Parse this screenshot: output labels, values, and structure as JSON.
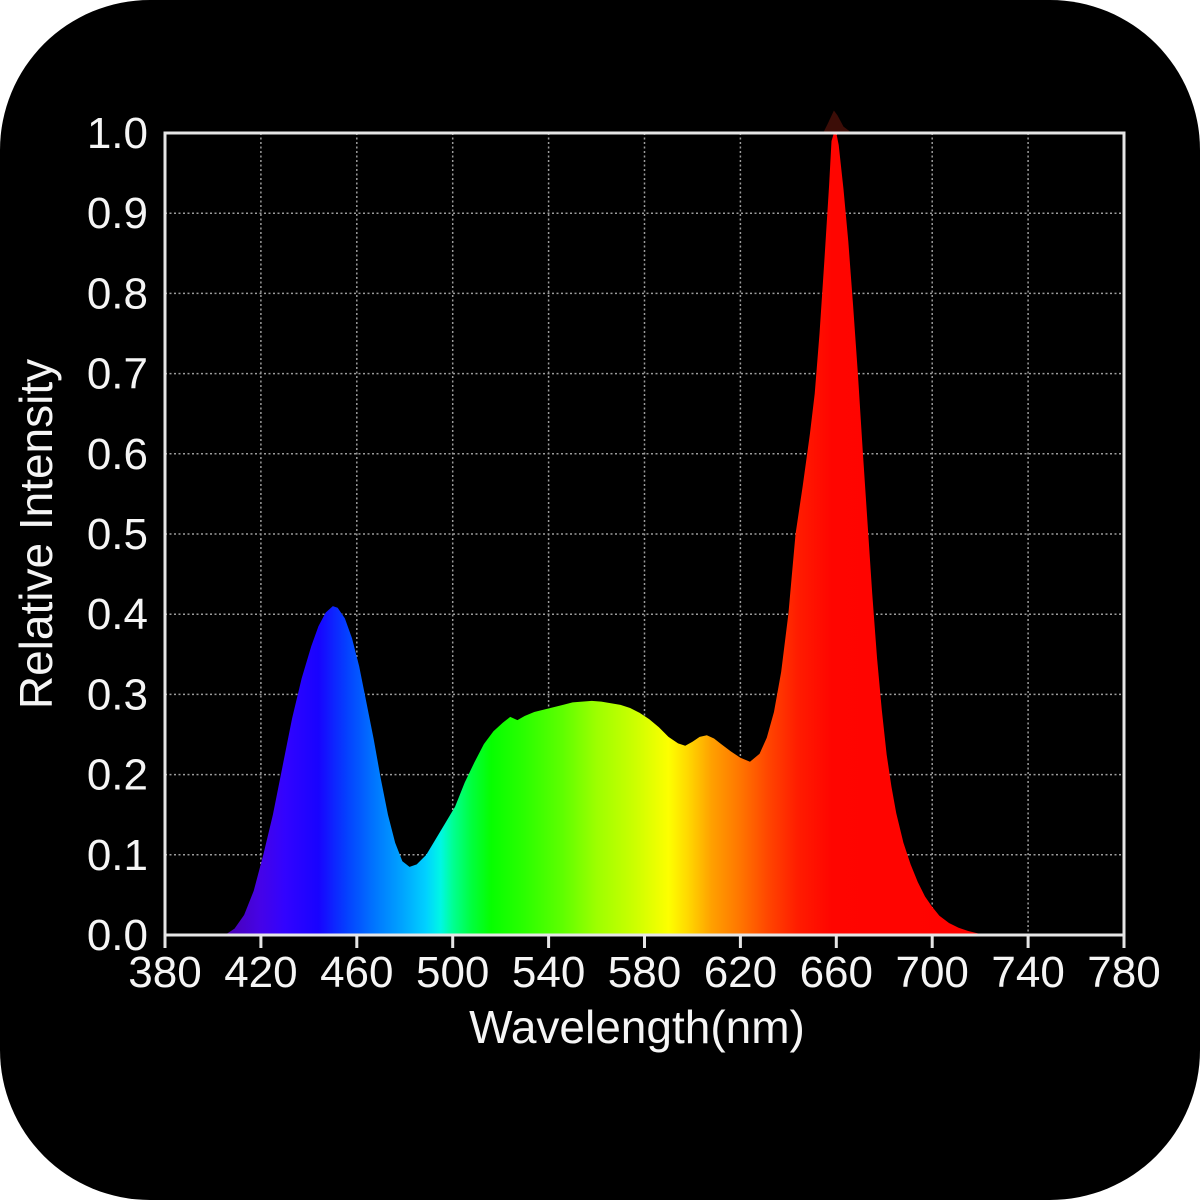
{
  "colors": {
    "page_background": "#ffffff",
    "panel_background": "#000000",
    "plot_background": "#000000",
    "frame": "#e6e6e6",
    "grid": "#9c9c9c",
    "text": "#f5f5f5",
    "overflow_peak_red": "#3c0d07"
  },
  "chart_data": {
    "type": "area",
    "title": "",
    "xlabel": "Wavelength(nm)",
    "ylabel": "Relative Intensity",
    "xlim": [
      380,
      780
    ],
    "ylim": [
      0.0,
      1.0
    ],
    "grid": "dotted gridlines every 40 nm vertical and every 0.1 horizontal",
    "legend": "none",
    "x_ticks": [
      {
        "value": 380,
        "label": "380"
      },
      {
        "value": 420,
        "label": "420"
      },
      {
        "value": 460,
        "label": "460"
      },
      {
        "value": 500,
        "label": "500"
      },
      {
        "value": 540,
        "label": "540"
      },
      {
        "value": 580,
        "label": "580"
      },
      {
        "value": 620,
        "label": "620"
      },
      {
        "value": 660,
        "label": "660"
      },
      {
        "value": 700,
        "label": "700"
      },
      {
        "value": 740,
        "label": "740"
      },
      {
        "value": 780,
        "label": "780"
      }
    ],
    "y_ticks": [
      {
        "value": 0.0,
        "label": "0.0"
      },
      {
        "value": 0.1,
        "label": "0.1"
      },
      {
        "value": 0.2,
        "label": "0.2"
      },
      {
        "value": 0.3,
        "label": "0.3"
      },
      {
        "value": 0.4,
        "label": "0.4"
      },
      {
        "value": 0.5,
        "label": "0.5"
      },
      {
        "value": 0.6,
        "label": "0.6"
      },
      {
        "value": 0.7,
        "label": "0.7"
      },
      {
        "value": 0.8,
        "label": "0.8"
      },
      {
        "value": 0.9,
        "label": "0.9"
      },
      {
        "value": 1.0,
        "label": "1.0"
      }
    ],
    "features": {
      "blue_peak": {
        "wavelength": 450,
        "intensity": 0.41
      },
      "valley_blue_green": {
        "wavelength": 480,
        "intensity": 0.085
      },
      "green_plateau_max": {
        "wavelength": 556,
        "intensity": 0.29
      },
      "orange_bump": {
        "wavelength": 605,
        "intensity": 0.25
      },
      "valley_before_red": {
        "wavelength": 624,
        "intensity": 0.215
      },
      "red_peak": {
        "wavelength": 659,
        "intensity": 1.0
      }
    },
    "series": [
      {
        "points": [
          [
            405,
            0
          ],
          [
            409,
            0.008
          ],
          [
            413,
            0.025
          ],
          [
            417,
            0.055
          ],
          [
            421,
            0.1
          ],
          [
            425,
            0.15
          ],
          [
            429,
            0.21
          ],
          [
            433,
            0.27
          ],
          [
            437,
            0.32
          ],
          [
            441,
            0.36
          ],
          [
            444,
            0.385
          ],
          [
            447,
            0.402
          ],
          [
            450,
            0.41
          ],
          [
            452,
            0.408
          ],
          [
            455,
            0.395
          ],
          [
            458,
            0.37
          ],
          [
            461,
            0.335
          ],
          [
            464,
            0.29
          ],
          [
            467,
            0.245
          ],
          [
            470,
            0.195
          ],
          [
            473,
            0.15
          ],
          [
            476,
            0.115
          ],
          [
            479,
            0.092
          ],
          [
            482,
            0.085
          ],
          [
            485,
            0.088
          ],
          [
            489,
            0.1
          ],
          [
            493,
            0.12
          ],
          [
            497,
            0.14
          ],
          [
            501,
            0.16
          ],
          [
            505,
            0.19
          ],
          [
            509,
            0.215
          ],
          [
            513,
            0.238
          ],
          [
            517,
            0.254
          ],
          [
            521,
            0.265
          ],
          [
            524,
            0.272
          ],
          [
            527,
            0.268
          ],
          [
            530,
            0.273
          ],
          [
            534,
            0.278
          ],
          [
            538,
            0.281
          ],
          [
            542,
            0.284
          ],
          [
            546,
            0.287
          ],
          [
            550,
            0.29
          ],
          [
            554,
            0.291
          ],
          [
            558,
            0.292
          ],
          [
            562,
            0.291
          ],
          [
            566,
            0.289
          ],
          [
            570,
            0.287
          ],
          [
            574,
            0.283
          ],
          [
            578,
            0.277
          ],
          [
            582,
            0.269
          ],
          [
            586,
            0.259
          ],
          [
            590,
            0.247
          ],
          [
            594,
            0.239
          ],
          [
            597,
            0.236
          ],
          [
            600,
            0.241
          ],
          [
            603,
            0.247
          ],
          [
            606,
            0.249
          ],
          [
            609,
            0.245
          ],
          [
            612,
            0.238
          ],
          [
            616,
            0.229
          ],
          [
            620,
            0.221
          ],
          [
            624,
            0.216
          ],
          [
            628,
            0.226
          ],
          [
            631,
            0.246
          ],
          [
            634,
            0.278
          ],
          [
            637,
            0.328
          ],
          [
            640,
            0.4
          ],
          [
            643,
            0.5
          ],
          [
            646,
            0.56
          ],
          [
            649,
            0.625
          ],
          [
            651,
            0.675
          ],
          [
            653,
            0.75
          ],
          [
            655,
            0.84
          ],
          [
            657,
            0.935
          ],
          [
            658,
            0.99
          ],
          [
            659,
            1.0
          ],
          [
            660,
            1.0
          ],
          [
            661,
            0.985
          ],
          [
            663,
            0.93
          ],
          [
            665,
            0.865
          ],
          [
            667,
            0.785
          ],
          [
            669,
            0.7
          ],
          [
            671,
            0.605
          ],
          [
            673,
            0.515
          ],
          [
            675,
            0.425
          ],
          [
            677,
            0.345
          ],
          [
            679,
            0.28
          ],
          [
            681,
            0.225
          ],
          [
            683,
            0.185
          ],
          [
            685,
            0.152
          ],
          [
            688,
            0.115
          ],
          [
            691,
            0.088
          ],
          [
            694,
            0.066
          ],
          [
            697,
            0.048
          ],
          [
            700,
            0.035
          ],
          [
            703,
            0.024
          ],
          [
            707,
            0.015
          ],
          [
            711,
            0.009
          ],
          [
            715,
            0.005
          ],
          [
            719,
            0.002
          ],
          [
            723,
            0
          ]
        ]
      }
    ],
    "peak_overflow": {
      "comment": "faint dark-red tip of the 659nm peak visible above the top frame line",
      "color": "#3c0d07",
      "points": [
        [
          654.5,
          1.0
        ],
        [
          656.5,
          1.012
        ],
        [
          659,
          1.028
        ],
        [
          660.5,
          1.022
        ],
        [
          663,
          1.008
        ],
        [
          666.5,
          1.0
        ]
      ]
    },
    "spectrum_gradient": [
      {
        "wavelength": 380,
        "color": "#2a0666"
      },
      {
        "wavelength": 406,
        "color": "#4a02b4"
      },
      {
        "wavelength": 420,
        "color": "#4503e8"
      },
      {
        "wavelength": 430,
        "color": "#3203ff"
      },
      {
        "wavelength": 444,
        "color": "#1803ff"
      },
      {
        "wavelength": 456,
        "color": "#0441ff"
      },
      {
        "wavelength": 468,
        "color": "#0078ff"
      },
      {
        "wavelength": 480,
        "color": "#00a8ff"
      },
      {
        "wavelength": 489,
        "color": "#00d2ff"
      },
      {
        "wavelength": 495,
        "color": "#00f7e4"
      },
      {
        "wavelength": 500,
        "color": "#00ff94"
      },
      {
        "wavelength": 508,
        "color": "#00ff3c"
      },
      {
        "wavelength": 516,
        "color": "#06ff00"
      },
      {
        "wavelength": 530,
        "color": "#2bff00"
      },
      {
        "wavelength": 546,
        "color": "#5fff00"
      },
      {
        "wavelength": 560,
        "color": "#9dff00"
      },
      {
        "wavelength": 576,
        "color": "#ccff00"
      },
      {
        "wavelength": 590,
        "color": "#fdff00"
      },
      {
        "wavelength": 598,
        "color": "#ffd900"
      },
      {
        "wavelength": 608,
        "color": "#ffa000"
      },
      {
        "wavelength": 620,
        "color": "#ff7500"
      },
      {
        "wavelength": 632,
        "color": "#ff4400"
      },
      {
        "wavelength": 644,
        "color": "#ff1c00"
      },
      {
        "wavelength": 658,
        "color": "#ff0500"
      },
      {
        "wavelength": 780,
        "color": "#ff0000"
      }
    ]
  }
}
